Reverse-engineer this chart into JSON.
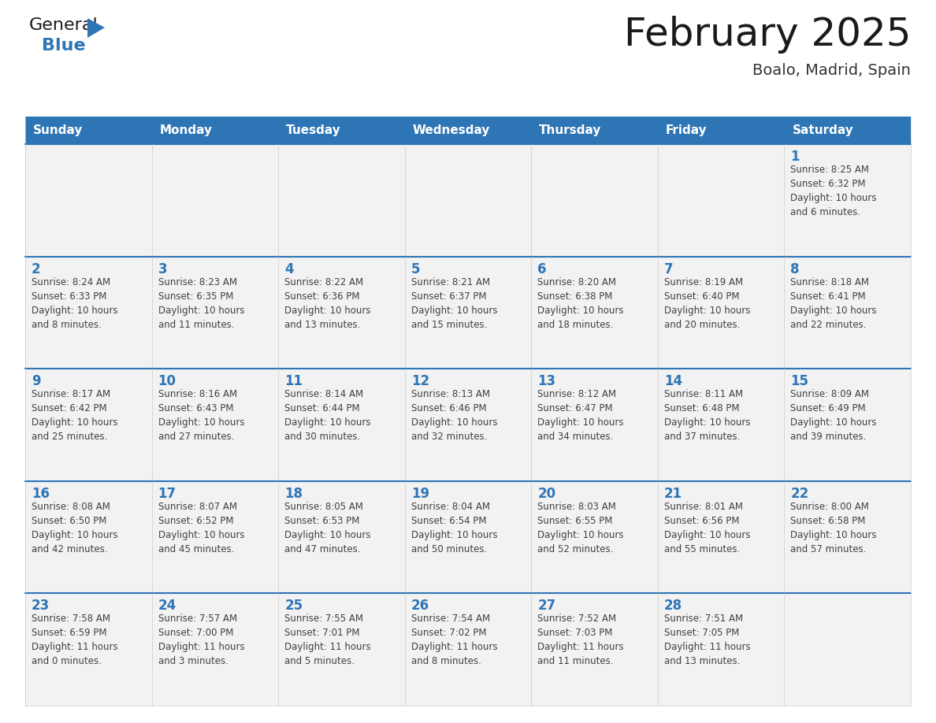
{
  "title": "February 2025",
  "subtitle": "Boalo, Madrid, Spain",
  "header_bg_color": "#2E75B6",
  "header_text_color": "#FFFFFF",
  "cell_bg_color": "#F2F2F2",
  "cell_bg_color_alt": "#FFFFFF",
  "cell_border_color": "#2E75B6",
  "cell_border_light": "#CCCCCC",
  "day_number_color": "#2E75B6",
  "cell_text_color": "#404040",
  "title_color": "#1a1a1a",
  "subtitle_color": "#333333",
  "logo_general_color": "#1a1a1a",
  "logo_blue_color": "#2E75B6",
  "logo_triangle_color": "#2E75B6",
  "days_of_week": [
    "Sunday",
    "Monday",
    "Tuesday",
    "Wednesday",
    "Thursday",
    "Friday",
    "Saturday"
  ],
  "weeks": [
    [
      {
        "day": 0,
        "text": ""
      },
      {
        "day": 0,
        "text": ""
      },
      {
        "day": 0,
        "text": ""
      },
      {
        "day": 0,
        "text": ""
      },
      {
        "day": 0,
        "text": ""
      },
      {
        "day": 0,
        "text": ""
      },
      {
        "day": 1,
        "text": "Sunrise: 8:25 AM\nSunset: 6:32 PM\nDaylight: 10 hours\nand 6 minutes."
      }
    ],
    [
      {
        "day": 2,
        "text": "Sunrise: 8:24 AM\nSunset: 6:33 PM\nDaylight: 10 hours\nand 8 minutes."
      },
      {
        "day": 3,
        "text": "Sunrise: 8:23 AM\nSunset: 6:35 PM\nDaylight: 10 hours\nand 11 minutes."
      },
      {
        "day": 4,
        "text": "Sunrise: 8:22 AM\nSunset: 6:36 PM\nDaylight: 10 hours\nand 13 minutes."
      },
      {
        "day": 5,
        "text": "Sunrise: 8:21 AM\nSunset: 6:37 PM\nDaylight: 10 hours\nand 15 minutes."
      },
      {
        "day": 6,
        "text": "Sunrise: 8:20 AM\nSunset: 6:38 PM\nDaylight: 10 hours\nand 18 minutes."
      },
      {
        "day": 7,
        "text": "Sunrise: 8:19 AM\nSunset: 6:40 PM\nDaylight: 10 hours\nand 20 minutes."
      },
      {
        "day": 8,
        "text": "Sunrise: 8:18 AM\nSunset: 6:41 PM\nDaylight: 10 hours\nand 22 minutes."
      }
    ],
    [
      {
        "day": 9,
        "text": "Sunrise: 8:17 AM\nSunset: 6:42 PM\nDaylight: 10 hours\nand 25 minutes."
      },
      {
        "day": 10,
        "text": "Sunrise: 8:16 AM\nSunset: 6:43 PM\nDaylight: 10 hours\nand 27 minutes."
      },
      {
        "day": 11,
        "text": "Sunrise: 8:14 AM\nSunset: 6:44 PM\nDaylight: 10 hours\nand 30 minutes."
      },
      {
        "day": 12,
        "text": "Sunrise: 8:13 AM\nSunset: 6:46 PM\nDaylight: 10 hours\nand 32 minutes."
      },
      {
        "day": 13,
        "text": "Sunrise: 8:12 AM\nSunset: 6:47 PM\nDaylight: 10 hours\nand 34 minutes."
      },
      {
        "day": 14,
        "text": "Sunrise: 8:11 AM\nSunset: 6:48 PM\nDaylight: 10 hours\nand 37 minutes."
      },
      {
        "day": 15,
        "text": "Sunrise: 8:09 AM\nSunset: 6:49 PM\nDaylight: 10 hours\nand 39 minutes."
      }
    ],
    [
      {
        "day": 16,
        "text": "Sunrise: 8:08 AM\nSunset: 6:50 PM\nDaylight: 10 hours\nand 42 minutes."
      },
      {
        "day": 17,
        "text": "Sunrise: 8:07 AM\nSunset: 6:52 PM\nDaylight: 10 hours\nand 45 minutes."
      },
      {
        "day": 18,
        "text": "Sunrise: 8:05 AM\nSunset: 6:53 PM\nDaylight: 10 hours\nand 47 minutes."
      },
      {
        "day": 19,
        "text": "Sunrise: 8:04 AM\nSunset: 6:54 PM\nDaylight: 10 hours\nand 50 minutes."
      },
      {
        "day": 20,
        "text": "Sunrise: 8:03 AM\nSunset: 6:55 PM\nDaylight: 10 hours\nand 52 minutes."
      },
      {
        "day": 21,
        "text": "Sunrise: 8:01 AM\nSunset: 6:56 PM\nDaylight: 10 hours\nand 55 minutes."
      },
      {
        "day": 22,
        "text": "Sunrise: 8:00 AM\nSunset: 6:58 PM\nDaylight: 10 hours\nand 57 minutes."
      }
    ],
    [
      {
        "day": 23,
        "text": "Sunrise: 7:58 AM\nSunset: 6:59 PM\nDaylight: 11 hours\nand 0 minutes."
      },
      {
        "day": 24,
        "text": "Sunrise: 7:57 AM\nSunset: 7:00 PM\nDaylight: 11 hours\nand 3 minutes."
      },
      {
        "day": 25,
        "text": "Sunrise: 7:55 AM\nSunset: 7:01 PM\nDaylight: 11 hours\nand 5 minutes."
      },
      {
        "day": 26,
        "text": "Sunrise: 7:54 AM\nSunset: 7:02 PM\nDaylight: 11 hours\nand 8 minutes."
      },
      {
        "day": 27,
        "text": "Sunrise: 7:52 AM\nSunset: 7:03 PM\nDaylight: 11 hours\nand 11 minutes."
      },
      {
        "day": 28,
        "text": "Sunrise: 7:51 AM\nSunset: 7:05 PM\nDaylight: 11 hours\nand 13 minutes."
      },
      {
        "day": 0,
        "text": ""
      }
    ]
  ]
}
